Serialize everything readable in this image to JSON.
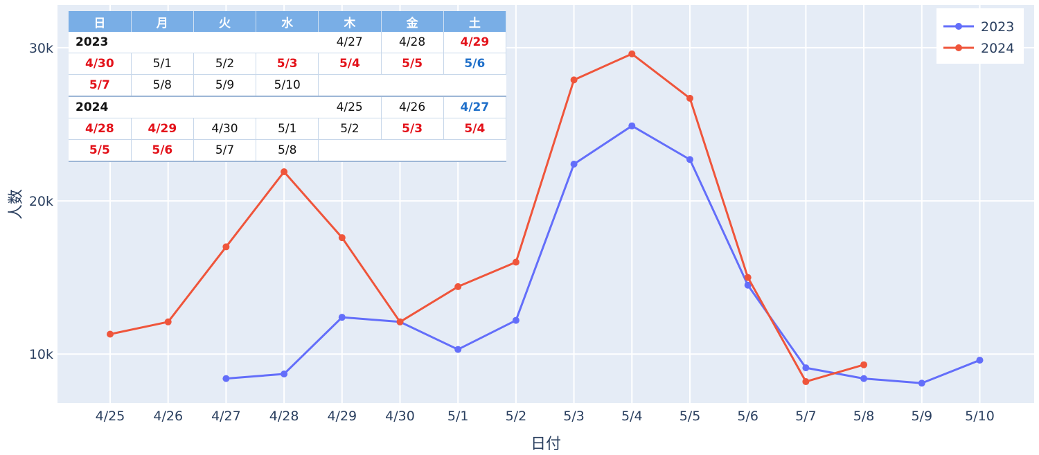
{
  "chart_data": {
    "type": "line",
    "x_labels": [
      "4/25",
      "4/26",
      "4/27",
      "4/28",
      "4/29",
      "4/30",
      "5/1",
      "5/2",
      "5/3",
      "5/4",
      "5/5",
      "5/6",
      "5/7",
      "5/8",
      "5/9",
      "5/10"
    ],
    "series": [
      {
        "name": "2023",
        "color": "#636efa",
        "values": [
          null,
          null,
          8400,
          8700,
          12400,
          12100,
          10300,
          12200,
          22400,
          24900,
          22700,
          14500,
          9100,
          8400,
          8100,
          9600
        ]
      },
      {
        "name": "2024",
        "color": "#ef553b",
        "values": [
          11300,
          12100,
          17000,
          21900,
          17600,
          12100,
          14400,
          16000,
          27900,
          29600,
          26700,
          15000,
          8200,
          9300,
          null,
          null
        ]
      }
    ],
    "xlabel": "日付",
    "ylabel": "人数",
    "y_ticks": [
      10000,
      20000,
      30000
    ],
    "y_tick_labels": [
      "10k",
      "20k",
      "30k"
    ],
    "ylim": [
      6800,
      32800
    ],
    "legend_position": "top-right",
    "grid": true,
    "plot_bg": "#e5ecf6"
  },
  "calendar": {
    "headers": [
      "日",
      "月",
      "火",
      "水",
      "木",
      "金",
      "土"
    ],
    "rows": [
      {
        "kind": "year",
        "year": "2023",
        "cells": [
          {
            "text": "4/27",
            "c": "black"
          },
          {
            "text": "4/28",
            "c": "black"
          },
          {
            "text": "4/29",
            "c": "red"
          }
        ]
      },
      {
        "kind": "days",
        "cells": [
          {
            "text": "4/30",
            "c": "red"
          },
          {
            "text": "5/1",
            "c": "black"
          },
          {
            "text": "5/2",
            "c": "black"
          },
          {
            "text": "5/3",
            "c": "red"
          },
          {
            "text": "5/4",
            "c": "red"
          },
          {
            "text": "5/5",
            "c": "red"
          },
          {
            "text": "5/6",
            "c": "blue"
          }
        ]
      },
      {
        "kind": "days",
        "end": true,
        "cells": [
          {
            "text": "5/7",
            "c": "red"
          },
          {
            "text": "5/8",
            "c": "black"
          },
          {
            "text": "5/9",
            "c": "black"
          },
          {
            "text": "5/10",
            "c": "black"
          }
        ]
      },
      {
        "kind": "year",
        "year": "2024",
        "cells": [
          {
            "text": "4/25",
            "c": "black"
          },
          {
            "text": "4/26",
            "c": "black"
          },
          {
            "text": "4/27",
            "c": "blue"
          }
        ]
      },
      {
        "kind": "days",
        "cells": [
          {
            "text": "4/28",
            "c": "red"
          },
          {
            "text": "4/29",
            "c": "red"
          },
          {
            "text": "4/30",
            "c": "black"
          },
          {
            "text": "5/1",
            "c": "black"
          },
          {
            "text": "5/2",
            "c": "black"
          },
          {
            "text": "5/3",
            "c": "red"
          },
          {
            "text": "5/4",
            "c": "red"
          }
        ]
      },
      {
        "kind": "days",
        "end": true,
        "cells": [
          {
            "text": "5/5",
            "c": "red"
          },
          {
            "text": "5/6",
            "c": "red"
          },
          {
            "text": "5/7",
            "c": "black"
          },
          {
            "text": "5/8",
            "c": "black"
          }
        ]
      }
    ]
  }
}
